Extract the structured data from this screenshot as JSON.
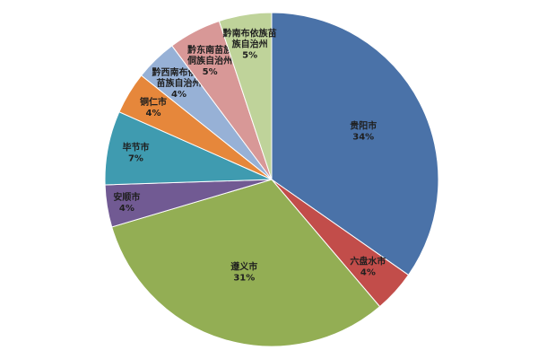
{
  "chart_data": {
    "type": "pie",
    "title": "",
    "start_angle_deg": 90,
    "direction": "clockwise",
    "slices": [
      {
        "label": [
          "贵阳市"
        ],
        "value": 34,
        "pct_text": "34%",
        "color": "#4A72A8"
      },
      {
        "label": [
          "六盘水市"
        ],
        "value": 4,
        "pct_text": "4%",
        "color": "#C24D4A"
      },
      {
        "label": [
          "遵义市"
        ],
        "value": 31,
        "pct_text": "31%",
        "color": "#93AE54"
      },
      {
        "label": [
          "安顺市"
        ],
        "value": 4,
        "pct_text": "4%",
        "color": "#715A93"
      },
      {
        "label": [
          "毕节市"
        ],
        "value": 7,
        "pct_text": "7%",
        "color": "#3F9BB0"
      },
      {
        "label": [
          "铜仁市"
        ],
        "value": 4,
        "pct_text": "4%",
        "color": "#E6873B"
      },
      {
        "label": [
          "黔西南布依族",
          "苗族自治州"
        ],
        "value": 4,
        "pct_text": "4%",
        "color": "#97B1D6"
      },
      {
        "label": [
          "黔东南苗族",
          "侗族自治州"
        ],
        "value": 5,
        "pct_text": "5%",
        "color": "#D89897"
      },
      {
        "label": [
          "黔南布依族苗",
          "族自治州"
        ],
        "value": 5,
        "pct_text": "5%",
        "color": "#BFD39A"
      }
    ]
  }
}
